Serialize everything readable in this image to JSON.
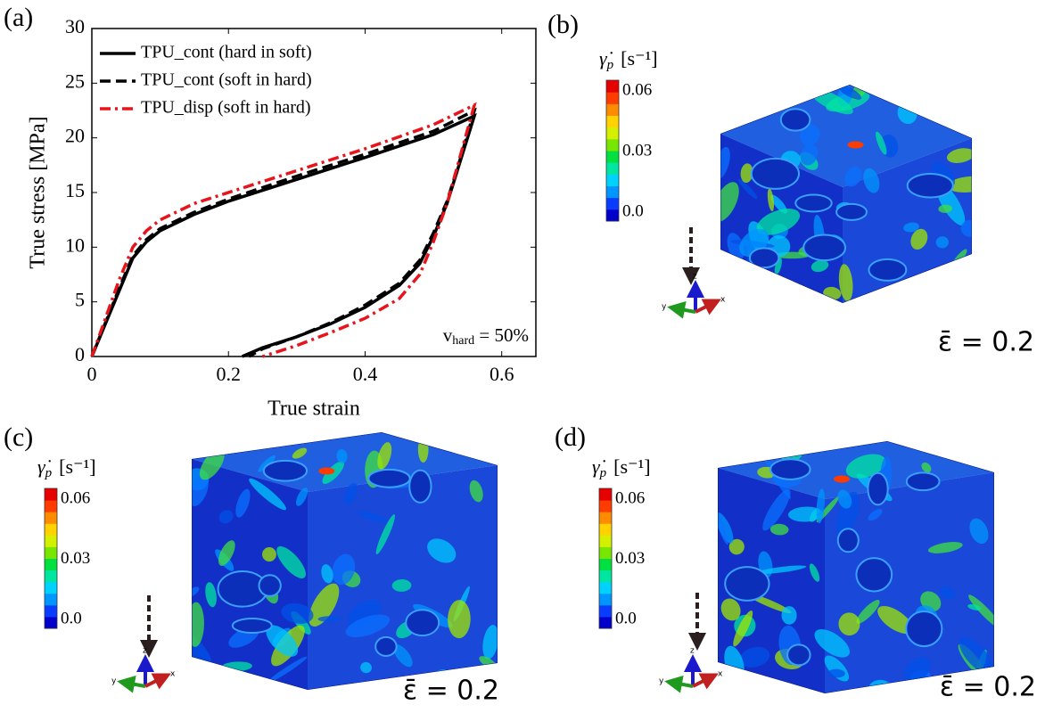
{
  "chart_data": {
    "type": "line",
    "panel_label": "(a)",
    "x_label": "True strain",
    "y_label": "True stress [MPa]",
    "xlim": [
      0,
      0.65
    ],
    "xticks": [
      0,
      0.2,
      0.4,
      0.6
    ],
    "ylim": [
      0,
      30
    ],
    "yticks": [
      0,
      5,
      10,
      15,
      20,
      25,
      30
    ],
    "legend": "upper left",
    "annotation": {
      "base": "v",
      "sub": "hard",
      "rest": " = 50%"
    },
    "series": [
      {
        "name": "TPU_cont (hard in soft)",
        "color": "#000000",
        "linestyle": "solid",
        "x": [
          0,
          0.02,
          0.04,
          0.06,
          0.08,
          0.1,
          0.15,
          0.2,
          0.3,
          0.4,
          0.5,
          0.56,
          0.54,
          0.52,
          0.5,
          0.48,
          0.45,
          0.4,
          0.35,
          0.3,
          0.25,
          0.22
        ],
        "values": [
          0,
          3,
          6,
          9,
          10.5,
          11.5,
          13,
          14.2,
          16.2,
          18.2,
          20.3,
          22,
          18,
          14,
          11,
          8.5,
          6.5,
          4.5,
          3,
          1.8,
          0.8,
          0
        ]
      },
      {
        "name": "TPU_cont (soft in hard)",
        "color": "#000000",
        "linestyle": "dashed",
        "x": [
          0,
          0.02,
          0.04,
          0.06,
          0.08,
          0.1,
          0.15,
          0.2,
          0.3,
          0.4,
          0.5,
          0.56,
          0.54,
          0.52,
          0.5,
          0.48,
          0.45,
          0.4,
          0.35,
          0.3,
          0.25,
          0.23
        ],
        "values": [
          0,
          3.1,
          6.2,
          9.2,
          10.7,
          11.7,
          13.2,
          14.4,
          16.5,
          18.5,
          20.6,
          22.5,
          18.2,
          14.2,
          11.3,
          8.8,
          6.7,
          4.7,
          3.1,
          1.8,
          0.7,
          0
        ]
      },
      {
        "name": "TPU_disp (soft in hard)",
        "color": "#e8141c",
        "linestyle": "dashdot",
        "x": [
          0,
          0.02,
          0.04,
          0.06,
          0.08,
          0.1,
          0.15,
          0.2,
          0.3,
          0.4,
          0.5,
          0.56,
          0.54,
          0.52,
          0.5,
          0.48,
          0.45,
          0.4,
          0.35,
          0.3,
          0.25
        ],
        "values": [
          0,
          3.5,
          7,
          10,
          11.5,
          12.5,
          14,
          15,
          17,
          19,
          21.2,
          23,
          18.5,
          14,
          10.5,
          7.5,
          5.3,
          3.5,
          2.2,
          1,
          0
        ]
      }
    ]
  },
  "panels": [
    {
      "label": "(b)",
      "colorbar": {
        "symbol": "γ̇",
        "sub": "p",
        "unit": "[s⁻¹]",
        "ticks": [
          "0.06",
          "0.03",
          "0.0"
        ]
      },
      "axes": [
        "z",
        "y",
        "x"
      ],
      "strain": "ε̄ = 0.2"
    },
    {
      "label": "(c)",
      "colorbar": {
        "symbol": "γ̇",
        "sub": "p",
        "unit": "[s⁻¹]",
        "ticks": [
          "0.06",
          "0.03",
          "0.0"
        ]
      },
      "axes": [
        "z",
        "y",
        "x"
      ],
      "strain": "ε̄ = 0.2"
    },
    {
      "label": "(d)",
      "colorbar": {
        "symbol": "γ̇",
        "sub": "p",
        "unit": "[s⁻¹]",
        "ticks": [
          "0.06",
          "0.03",
          "0.0"
        ]
      },
      "axes": [
        "z",
        "y",
        "x"
      ],
      "strain": "ε̄ = 0.2"
    }
  ]
}
